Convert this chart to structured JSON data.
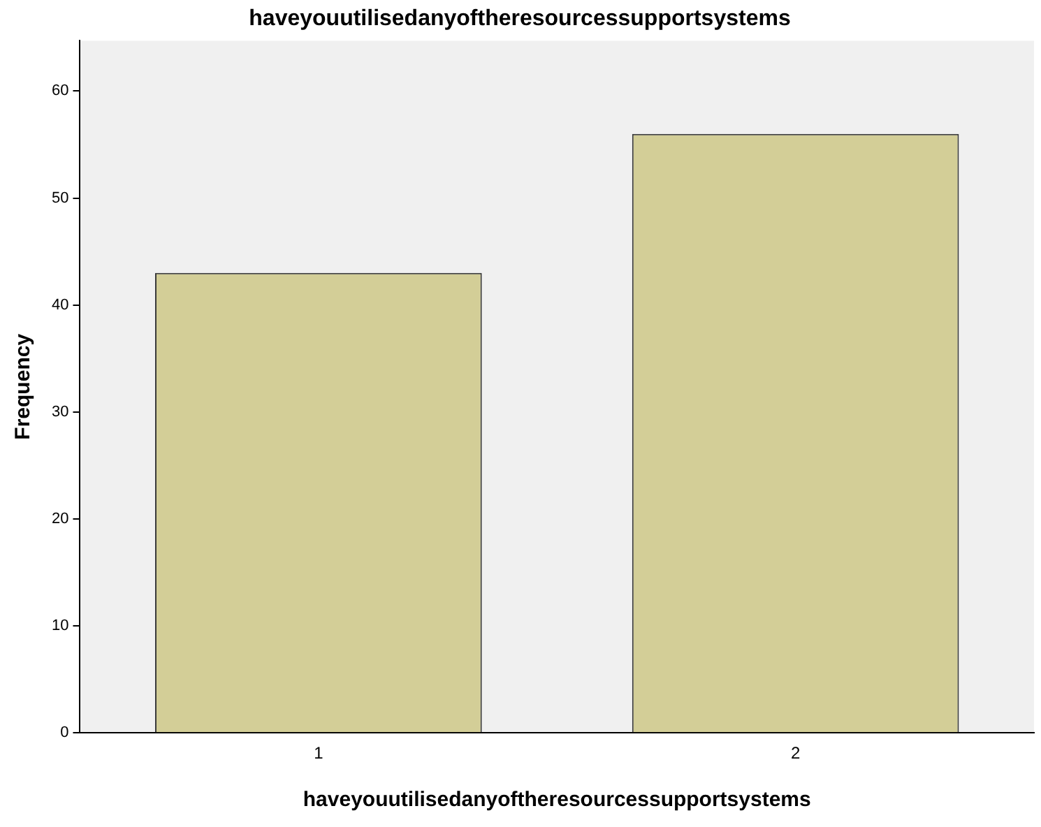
{
  "chart_data": {
    "type": "bar",
    "title": "haveyouutilisedanyoftheresourcessupportsystems",
    "xlabel": "haveyouutilisedanyoftheresourcessupportsystems",
    "ylabel": "Frequency",
    "categories": [
      "1",
      "2"
    ],
    "values": [
      43,
      56
    ],
    "color": "#d3ce97",
    "ylim": [
      0,
      64.7
    ],
    "yticks": [
      0,
      10,
      20,
      30,
      40,
      50,
      60
    ],
    "grid": false
  }
}
